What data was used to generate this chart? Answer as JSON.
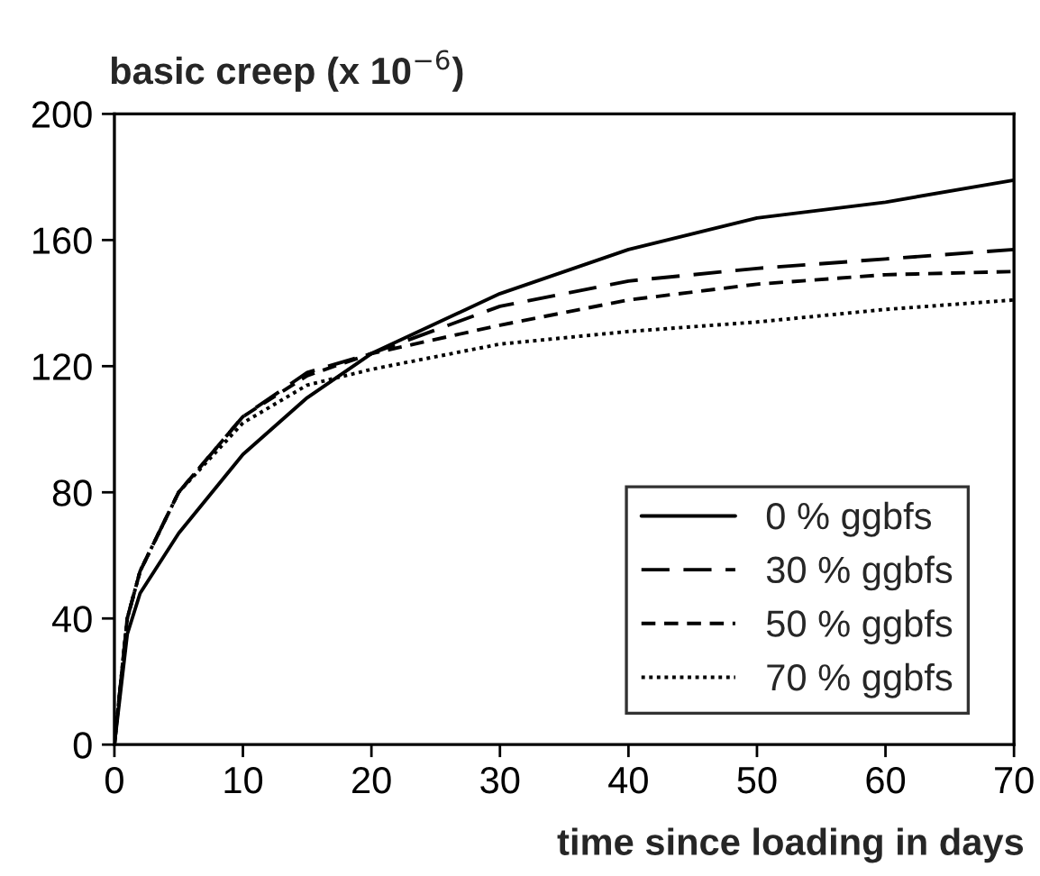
{
  "chart_data": {
    "type": "line",
    "ylabel": "basic creep (x 10$^{−6}$)",
    "xlabel": "time since loading in days",
    "xlim": [
      0,
      70
    ],
    "ylim": [
      0,
      200
    ],
    "xticks": [
      0,
      10,
      20,
      30,
      40,
      50,
      60,
      70
    ],
    "yticks": [
      0,
      40,
      80,
      120,
      160,
      200
    ],
    "grid": false,
    "legend": "bottom right",
    "marker": "none",
    "series": [
      {
        "name": "0 % ggbfs",
        "color": "#000000",
        "line_style": "solid",
        "x": [
          0,
          1,
          2,
          5,
          10,
          15,
          20,
          30,
          40,
          50,
          60,
          70
        ],
        "values": [
          0,
          35,
          48,
          67,
          92,
          110,
          124,
          143,
          157,
          167,
          172,
          179
        ]
      },
      {
        "name": "30 % ggbfs",
        "color": "#000000",
        "line_style": "longdash",
        "x": [
          0,
          1,
          2,
          5,
          10,
          15,
          20,
          30,
          40,
          50,
          60,
          70
        ],
        "values": [
          0,
          40,
          55,
          80,
          104,
          118,
          124,
          139,
          147,
          151,
          154,
          157
        ]
      },
      {
        "name": "50 % ggbfs",
        "color": "#000000",
        "line_style": "dashed",
        "x": [
          0,
          1,
          2,
          5,
          10,
          15,
          20,
          30,
          40,
          50,
          60,
          70
        ],
        "values": [
          0,
          40,
          55,
          80,
          104,
          117,
          124,
          133,
          141,
          146,
          149,
          150
        ]
      },
      {
        "name": "70 % ggbfs",
        "color": "#000000",
        "line_style": "dotted",
        "x": [
          0,
          1,
          2,
          5,
          10,
          15,
          20,
          30,
          40,
          50,
          60,
          70
        ],
        "values": [
          0,
          40,
          55,
          80,
          102,
          114,
          119,
          127,
          131,
          134,
          138,
          141
        ]
      }
    ]
  }
}
